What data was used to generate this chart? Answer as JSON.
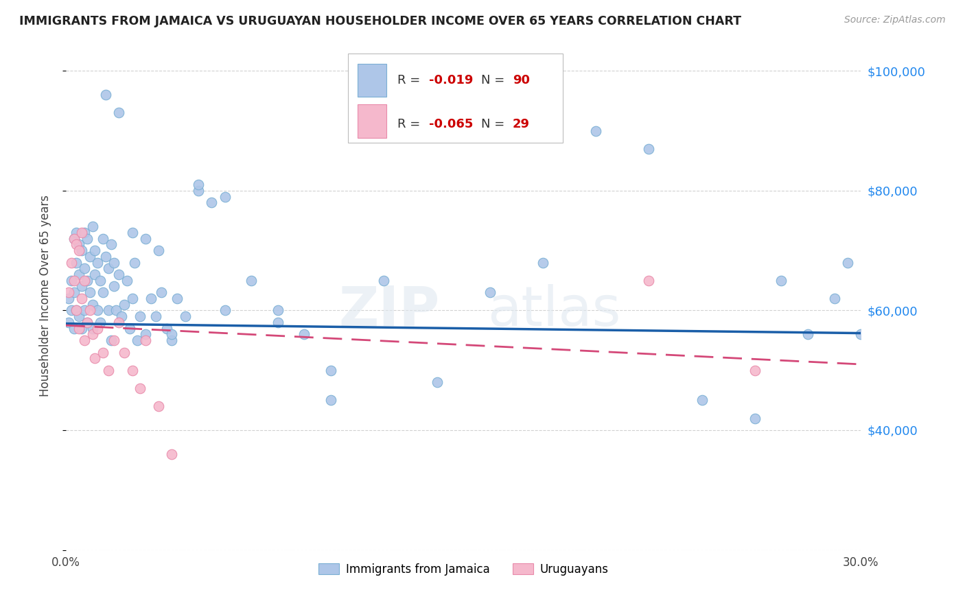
{
  "title": "IMMIGRANTS FROM JAMAICA VS URUGUAYAN HOUSEHOLDER INCOME OVER 65 YEARS CORRELATION CHART",
  "source": "Source: ZipAtlas.com",
  "ylabel": "Householder Income Over 65 years",
  "y_range": [
    20000,
    105000
  ],
  "x_range": [
    0.0,
    0.3
  ],
  "watermark_part1": "ZIP",
  "watermark_part2": "atlas",
  "jamaica_R": "-0.019",
  "jamaica_N": "90",
  "uruguay_R": "-0.065",
  "uruguay_N": "29",
  "jamaica_color": "#aec6e8",
  "jamaica_edge_color": "#7aafd4",
  "jamaica_line_color": "#1a5ea8",
  "uruguay_color": "#f5b8cc",
  "uruguay_edge_color": "#e88aaa",
  "uruguay_line_color": "#d44878",
  "jamaica_x": [
    0.001,
    0.001,
    0.002,
    0.002,
    0.003,
    0.003,
    0.003,
    0.004,
    0.004,
    0.004,
    0.005,
    0.005,
    0.005,
    0.006,
    0.006,
    0.006,
    0.007,
    0.007,
    0.007,
    0.008,
    0.008,
    0.008,
    0.009,
    0.009,
    0.01,
    0.01,
    0.01,
    0.011,
    0.011,
    0.012,
    0.012,
    0.013,
    0.013,
    0.014,
    0.014,
    0.015,
    0.016,
    0.016,
    0.017,
    0.017,
    0.018,
    0.018,
    0.019,
    0.02,
    0.021,
    0.022,
    0.023,
    0.024,
    0.025,
    0.026,
    0.027,
    0.028,
    0.03,
    0.032,
    0.034,
    0.036,
    0.038,
    0.04,
    0.042,
    0.045,
    0.05,
    0.055,
    0.06,
    0.07,
    0.08,
    0.09,
    0.1,
    0.12,
    0.14,
    0.16,
    0.18,
    0.2,
    0.22,
    0.24,
    0.26,
    0.27,
    0.28,
    0.29,
    0.295,
    0.3,
    0.015,
    0.02,
    0.025,
    0.03,
    0.035,
    0.04,
    0.05,
    0.06,
    0.08,
    0.1
  ],
  "jamaica_y": [
    62000,
    58000,
    60000,
    65000,
    72000,
    63000,
    57000,
    68000,
    60000,
    73000,
    66000,
    59000,
    71000,
    64000,
    70000,
    57000,
    67000,
    73000,
    60000,
    65000,
    72000,
    58000,
    69000,
    63000,
    74000,
    61000,
    57000,
    66000,
    70000,
    68000,
    60000,
    65000,
    58000,
    72000,
    63000,
    69000,
    67000,
    60000,
    71000,
    55000,
    64000,
    68000,
    60000,
    66000,
    59000,
    61000,
    65000,
    57000,
    62000,
    68000,
    55000,
    59000,
    56000,
    62000,
    59000,
    63000,
    57000,
    55000,
    62000,
    59000,
    80000,
    78000,
    60000,
    65000,
    58000,
    56000,
    50000,
    65000,
    48000,
    63000,
    68000,
    90000,
    87000,
    45000,
    42000,
    65000,
    56000,
    62000,
    68000,
    56000,
    96000,
    93000,
    73000,
    72000,
    70000,
    56000,
    81000,
    79000,
    60000,
    45000
  ],
  "uruguay_x": [
    0.001,
    0.002,
    0.003,
    0.003,
    0.004,
    0.004,
    0.005,
    0.005,
    0.006,
    0.006,
    0.007,
    0.007,
    0.008,
    0.009,
    0.01,
    0.011,
    0.012,
    0.014,
    0.016,
    0.018,
    0.02,
    0.022,
    0.025,
    0.028,
    0.03,
    0.035,
    0.04,
    0.22,
    0.26
  ],
  "uruguay_y": [
    63000,
    68000,
    72000,
    65000,
    71000,
    60000,
    70000,
    57000,
    73000,
    62000,
    65000,
    55000,
    58000,
    60000,
    56000,
    52000,
    57000,
    53000,
    50000,
    55000,
    58000,
    53000,
    50000,
    47000,
    55000,
    44000,
    36000,
    65000,
    50000
  ],
  "jamaica_trend_x": [
    0.0,
    0.3
  ],
  "jamaica_trend_y": [
    57800,
    56200
  ],
  "uruguay_trend_x": [
    0.0,
    0.3
  ],
  "uruguay_trend_y": [
    57500,
    51000
  ],
  "background_color": "#ffffff",
  "grid_color": "#cccccc",
  "title_color": "#222222",
  "right_axis_color": "#2288ee"
}
